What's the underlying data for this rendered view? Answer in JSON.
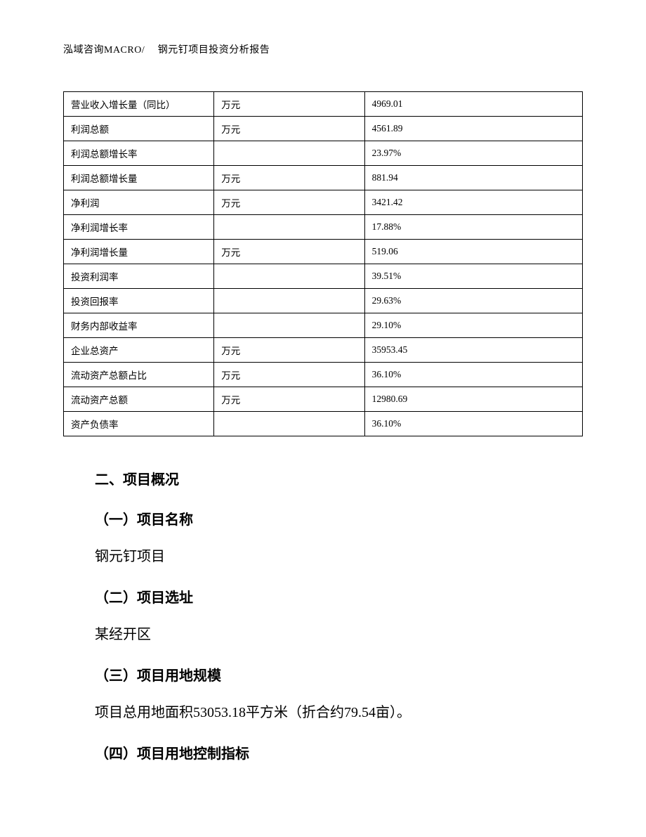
{
  "header": {
    "text": "泓域咨询MACRO/　 钢元钉项目投资分析报告"
  },
  "table": {
    "columns": {
      "label_width": "29%",
      "unit_width": "29%",
      "value_width": "42%"
    },
    "border_color": "#000000",
    "font_size": 13.5,
    "rows": [
      {
        "label": "营业收入增长量（同比）",
        "unit": "万元",
        "value": "4969.01"
      },
      {
        "label": "利润总额",
        "unit": "万元",
        "value": "4561.89"
      },
      {
        "label": "利润总额增长率",
        "unit": "",
        "value": "23.97%"
      },
      {
        "label": "利润总额增长量",
        "unit": "万元",
        "value": "881.94"
      },
      {
        "label": "净利润",
        "unit": "万元",
        "value": "3421.42"
      },
      {
        "label": "净利润增长率",
        "unit": "",
        "value": "17.88%"
      },
      {
        "label": "净利润增长量",
        "unit": "万元",
        "value": "519.06"
      },
      {
        "label": "投资利润率",
        "unit": "",
        "value": "39.51%"
      },
      {
        "label": "投资回报率",
        "unit": "",
        "value": "29.63%"
      },
      {
        "label": "财务内部收益率",
        "unit": "",
        "value": "29.10%"
      },
      {
        "label": "企业总资产",
        "unit": "万元",
        "value": "35953.45"
      },
      {
        "label": "流动资产总额占比",
        "unit": "万元",
        "value": "36.10%"
      },
      {
        "label": "流动资产总额",
        "unit": "万元",
        "value": "12980.69"
      },
      {
        "label": "资产负债率",
        "unit": "",
        "value": "36.10%"
      }
    ]
  },
  "content": {
    "section_title": "二、项目概况",
    "sub1_title": "（一）项目名称",
    "sub1_text": "钢元钉项目",
    "sub2_title": "（二）项目选址",
    "sub2_text": "某经开区",
    "sub3_title": "（三）项目用地规模",
    "sub3_text": "项目总用地面积53053.18平方米（折合约79.54亩）。",
    "sub4_title": "（四）项目用地控制指标"
  },
  "styles": {
    "background_color": "#ffffff",
    "text_color": "#000000",
    "header_fontsize": 14,
    "section_fontsize": 20,
    "body_fontsize": 20
  }
}
